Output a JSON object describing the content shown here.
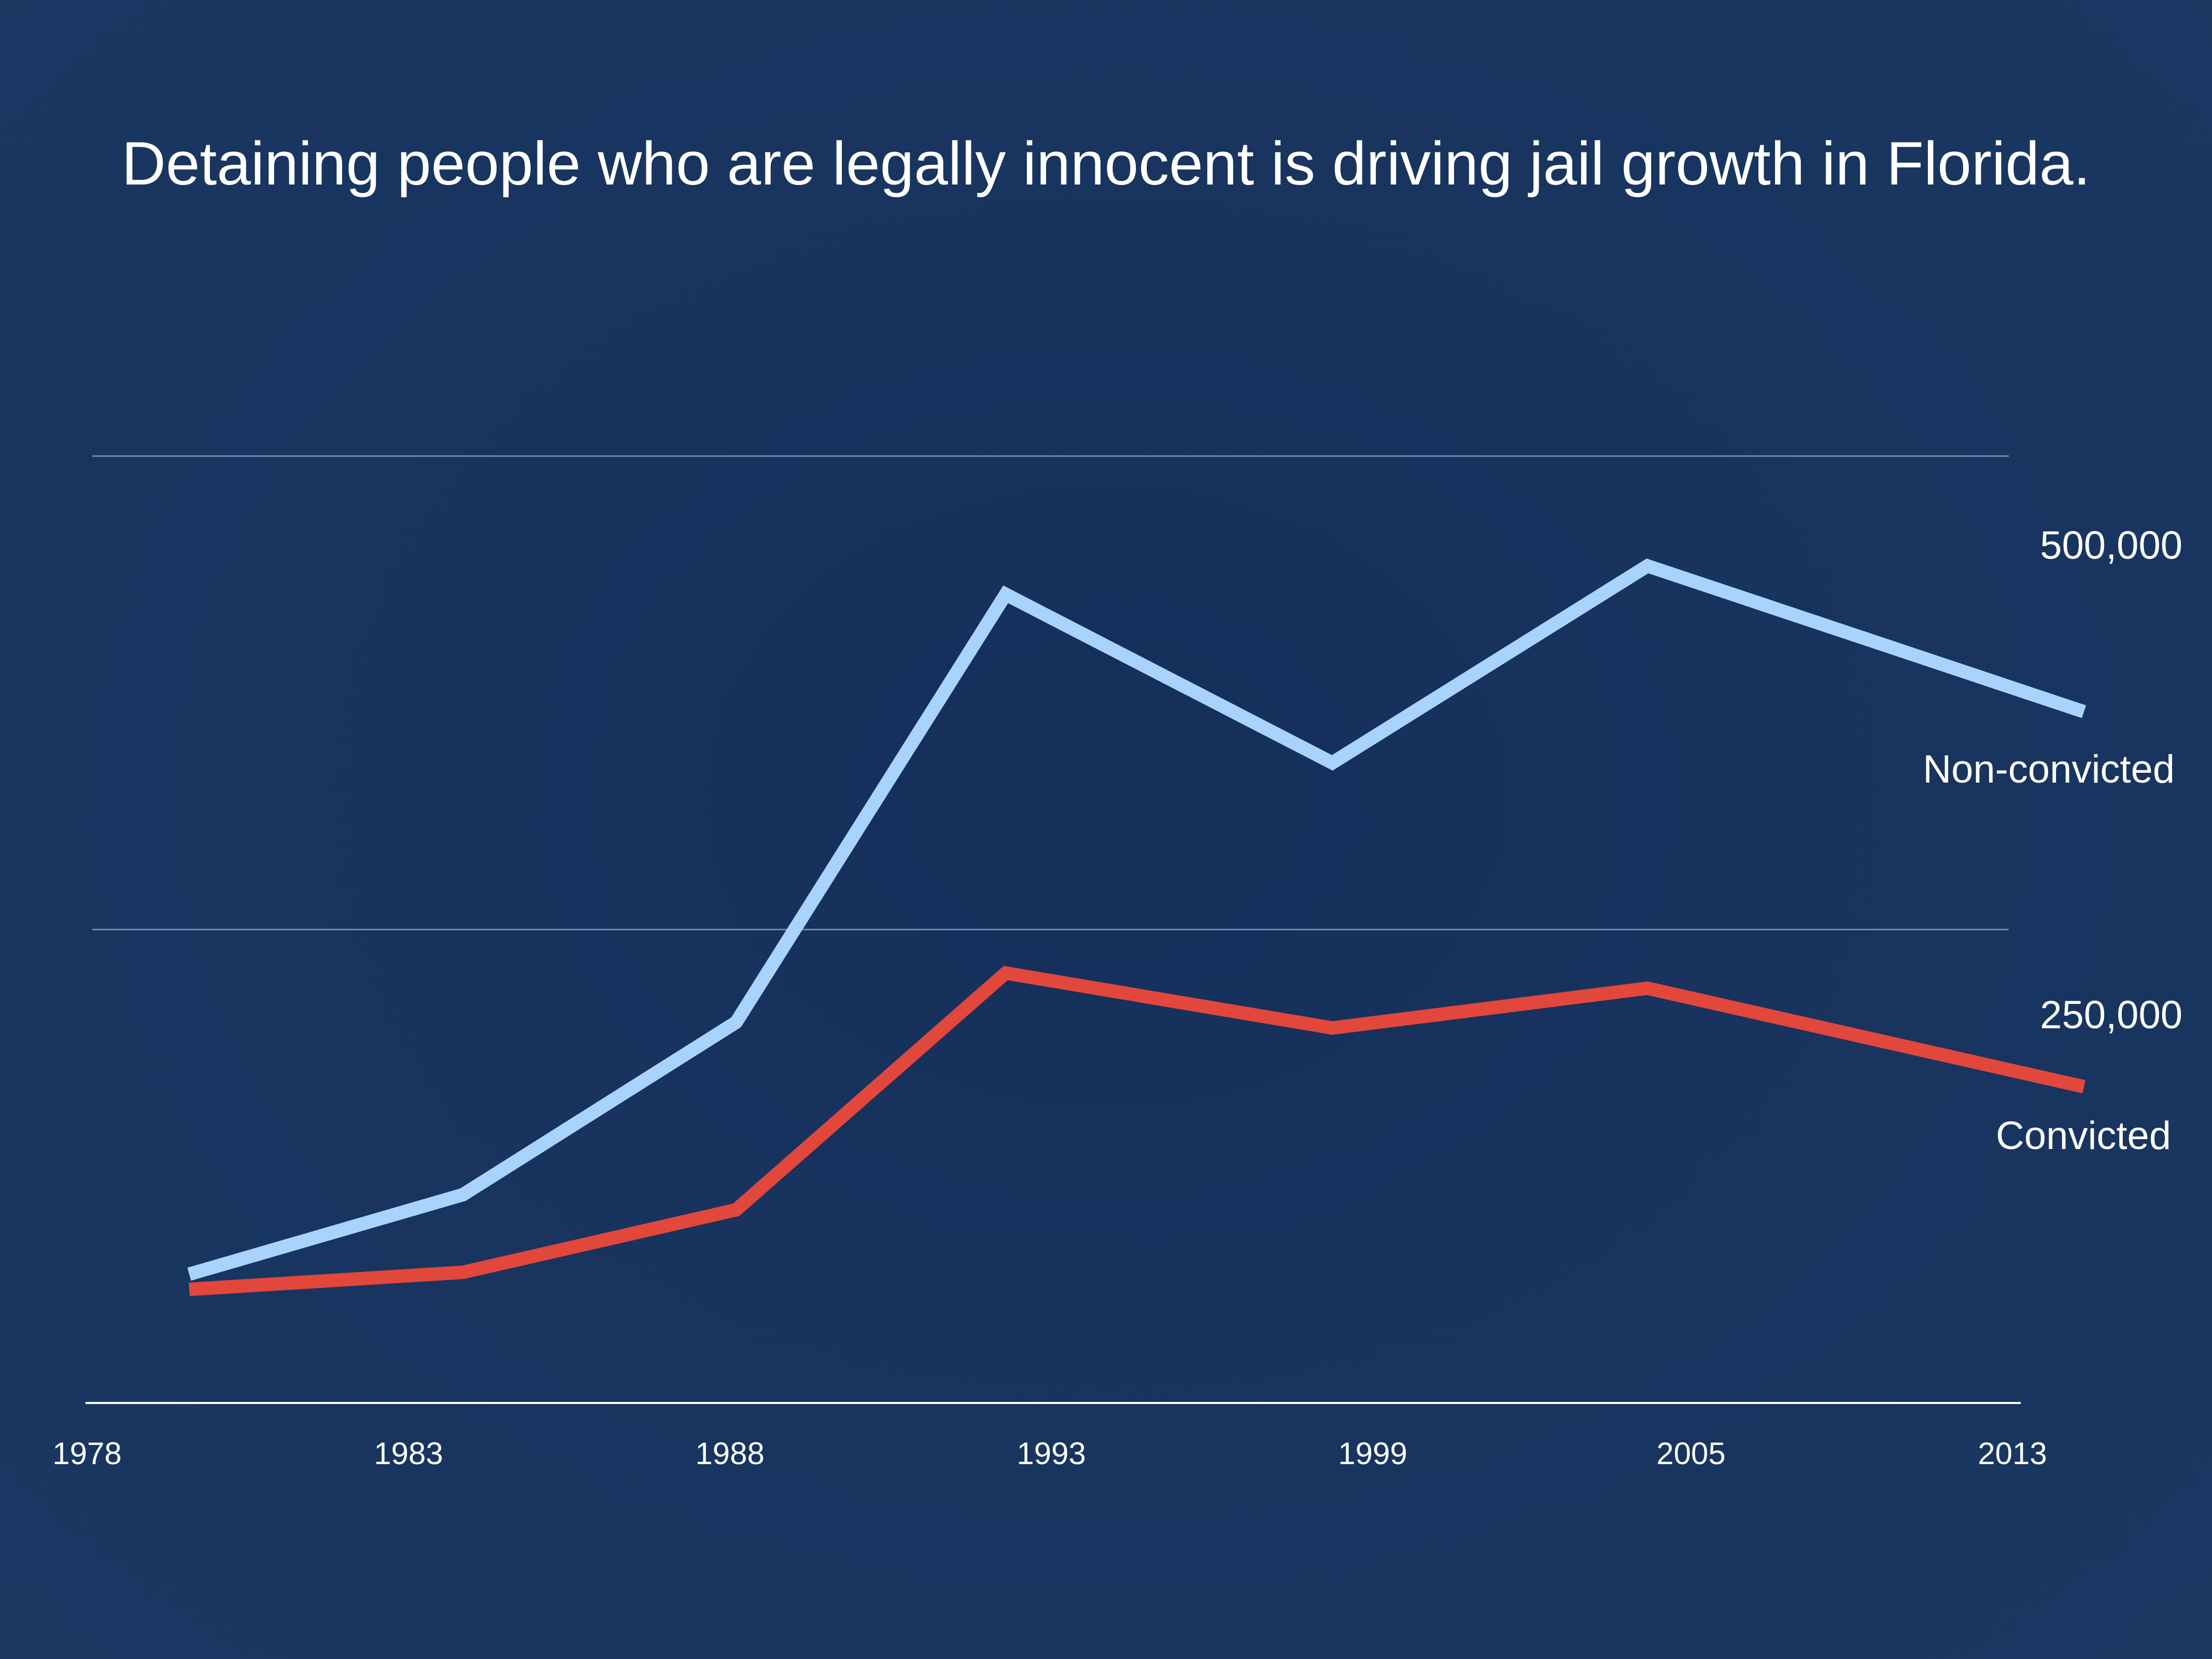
{
  "chart_data": {
    "type": "line",
    "title": "Detaining people who are legally innocent is driving jail growth in Florida.",
    "xlabel": "",
    "ylabel": "",
    "x_ticks": [
      "1978",
      "1983",
      "1988",
      "1993",
      "1999",
      "2005",
      "2013"
    ],
    "y_ticks": [
      {
        "value": 250000,
        "label": "250,000"
      },
      {
        "value": 500000,
        "label": "500,000"
      }
    ],
    "ylim": [
      0,
      500000
    ],
    "grid": true,
    "series": [
      {
        "name": "Non-convicted",
        "color": "#a8d4fb",
        "points": [
          {
            "x": 1979.6,
            "y": 68000
          },
          {
            "x": 1984.3,
            "y": 110000
          },
          {
            "x": 1989.0,
            "y": 201000
          },
          {
            "x": 1993.6,
            "y": 427000
          },
          {
            "x": 1999.2,
            "y": 338000
          },
          {
            "x": 2004.7,
            "y": 442000
          },
          {
            "x": 2012.9,
            "y": 365000
          }
        ]
      },
      {
        "name": "Convicted",
        "color": "#e2473c",
        "points": [
          {
            "x": 1979.6,
            "y": 60000
          },
          {
            "x": 1984.3,
            "y": 69000
          },
          {
            "x": 1989.0,
            "y": 102000
          },
          {
            "x": 1993.6,
            "y": 227000
          },
          {
            "x": 1999.2,
            "y": 198000
          },
          {
            "x": 2004.7,
            "y": 219000
          },
          {
            "x": 2012.9,
            "y": 167000
          }
        ]
      }
    ]
  }
}
